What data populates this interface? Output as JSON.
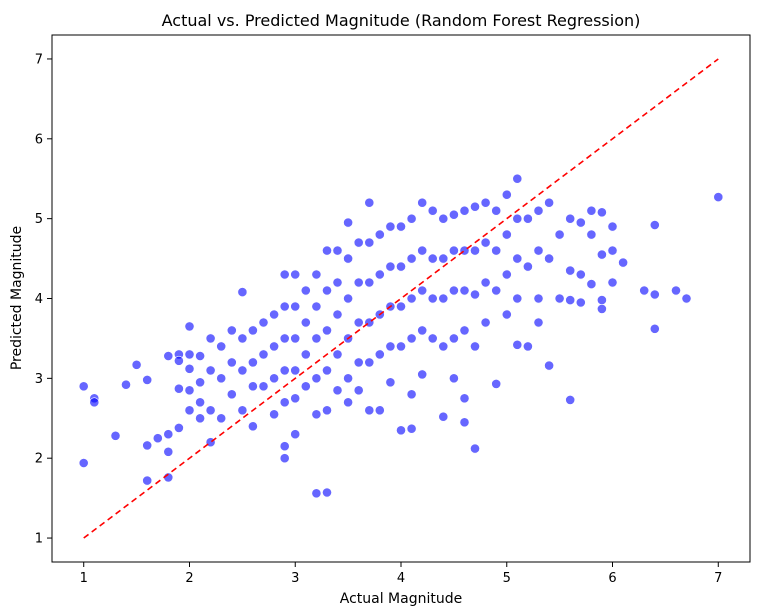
{
  "chart_data": {
    "type": "scatter",
    "title": "Actual vs. Predicted Magnitude (Random Forest Regression)",
    "xlabel": "Actual Magnitude",
    "ylabel": "Predicted Magnitude",
    "xlim": [
      0.7,
      7.3
    ],
    "ylim": [
      0.7,
      7.3
    ],
    "xticks": [
      "1",
      "2",
      "3",
      "4",
      "5",
      "6",
      "7"
    ],
    "yticks": [
      "1",
      "2",
      "3",
      "4",
      "5",
      "6",
      "7"
    ],
    "grid": false,
    "colors": {
      "points": "#0000ff",
      "reference_line": "#ff0000"
    },
    "reference_line": {
      "style": "dashed",
      "points": [
        [
          1,
          1
        ],
        [
          7,
          7
        ]
      ]
    },
    "series": [
      {
        "values": [
          [
            1.0,
            2.9
          ],
          [
            1.0,
            1.94
          ],
          [
            1.1,
            2.75
          ],
          [
            1.1,
            2.7
          ],
          [
            1.3,
            2.28
          ],
          [
            1.4,
            2.92
          ],
          [
            1.5,
            3.17
          ],
          [
            1.6,
            2.98
          ],
          [
            1.6,
            2.16
          ],
          [
            1.6,
            1.72
          ],
          [
            1.7,
            2.25
          ],
          [
            1.8,
            2.3
          ],
          [
            1.8,
            2.08
          ],
          [
            1.8,
            1.76
          ],
          [
            1.8,
            3.28
          ],
          [
            1.9,
            3.3
          ],
          [
            1.9,
            2.87
          ],
          [
            1.9,
            2.38
          ],
          [
            1.9,
            3.22
          ],
          [
            2.0,
            3.65
          ],
          [
            2.0,
            3.3
          ],
          [
            2.0,
            3.12
          ],
          [
            2.0,
            2.6
          ],
          [
            2.0,
            2.85
          ],
          [
            2.1,
            3.28
          ],
          [
            2.1,
            2.95
          ],
          [
            2.1,
            2.7
          ],
          [
            2.1,
            2.5
          ],
          [
            2.2,
            3.5
          ],
          [
            2.2,
            3.1
          ],
          [
            2.2,
            2.6
          ],
          [
            2.2,
            2.2
          ],
          [
            2.3,
            3.4
          ],
          [
            2.3,
            3.0
          ],
          [
            2.3,
            2.5
          ],
          [
            2.4,
            3.6
          ],
          [
            2.4,
            3.2
          ],
          [
            2.4,
            2.8
          ],
          [
            2.5,
            4.08
          ],
          [
            2.5,
            3.5
          ],
          [
            2.5,
            3.1
          ],
          [
            2.5,
            2.6
          ],
          [
            2.6,
            3.6
          ],
          [
            2.6,
            3.2
          ],
          [
            2.6,
            2.9
          ],
          [
            2.6,
            2.4
          ],
          [
            2.7,
            3.7
          ],
          [
            2.7,
            3.3
          ],
          [
            2.7,
            2.9
          ],
          [
            2.8,
            3.8
          ],
          [
            2.8,
            3.4
          ],
          [
            2.8,
            3.0
          ],
          [
            2.8,
            2.55
          ],
          [
            2.9,
            4.3
          ],
          [
            2.9,
            3.9
          ],
          [
            2.9,
            3.5
          ],
          [
            2.9,
            3.1
          ],
          [
            2.9,
            2.7
          ],
          [
            2.9,
            2.15
          ],
          [
            2.9,
            2.0
          ],
          [
            3.0,
            4.3
          ],
          [
            3.0,
            3.9
          ],
          [
            3.0,
            3.5
          ],
          [
            3.0,
            3.1
          ],
          [
            3.0,
            2.75
          ],
          [
            3.0,
            2.3
          ],
          [
            3.1,
            4.1
          ],
          [
            3.1,
            3.7
          ],
          [
            3.1,
            3.3
          ],
          [
            3.1,
            2.9
          ],
          [
            3.2,
            4.3
          ],
          [
            3.2,
            3.9
          ],
          [
            3.2,
            3.5
          ],
          [
            3.2,
            3.0
          ],
          [
            3.2,
            2.55
          ],
          [
            3.2,
            1.56
          ],
          [
            3.3,
            4.6
          ],
          [
            3.3,
            4.1
          ],
          [
            3.3,
            3.6
          ],
          [
            3.3,
            3.1
          ],
          [
            3.3,
            2.6
          ],
          [
            3.3,
            1.57
          ],
          [
            3.4,
            4.6
          ],
          [
            3.4,
            4.2
          ],
          [
            3.4,
            3.8
          ],
          [
            3.4,
            3.3
          ],
          [
            3.4,
            2.85
          ],
          [
            3.5,
            4.95
          ],
          [
            3.5,
            4.5
          ],
          [
            3.5,
            4.0
          ],
          [
            3.5,
            3.5
          ],
          [
            3.5,
            3.0
          ],
          [
            3.5,
            2.7
          ],
          [
            3.6,
            4.7
          ],
          [
            3.6,
            4.2
          ],
          [
            3.6,
            3.7
          ],
          [
            3.6,
            3.2
          ],
          [
            3.6,
            2.85
          ],
          [
            3.7,
            5.2
          ],
          [
            3.7,
            4.7
          ],
          [
            3.7,
            4.2
          ],
          [
            3.7,
            3.7
          ],
          [
            3.7,
            3.2
          ],
          [
            3.7,
            2.6
          ],
          [
            3.8,
            4.8
          ],
          [
            3.8,
            4.3
          ],
          [
            3.8,
            3.8
          ],
          [
            3.8,
            3.3
          ],
          [
            3.8,
            2.6
          ],
          [
            3.9,
            4.9
          ],
          [
            3.9,
            4.4
          ],
          [
            3.9,
            3.9
          ],
          [
            3.9,
            3.4
          ],
          [
            3.9,
            2.95
          ],
          [
            4.0,
            4.9
          ],
          [
            4.0,
            4.4
          ],
          [
            4.0,
            3.9
          ],
          [
            4.0,
            3.4
          ],
          [
            4.0,
            2.35
          ],
          [
            4.1,
            5.0
          ],
          [
            4.1,
            4.5
          ],
          [
            4.1,
            4.0
          ],
          [
            4.1,
            3.5
          ],
          [
            4.1,
            2.37
          ],
          [
            4.1,
            2.8
          ],
          [
            4.2,
            5.2
          ],
          [
            4.2,
            4.6
          ],
          [
            4.2,
            4.1
          ],
          [
            4.2,
            3.6
          ],
          [
            4.2,
            3.05
          ],
          [
            4.3,
            5.1
          ],
          [
            4.3,
            4.5
          ],
          [
            4.3,
            4.0
          ],
          [
            4.3,
            3.5
          ],
          [
            4.4,
            5.0
          ],
          [
            4.4,
            4.5
          ],
          [
            4.4,
            4.0
          ],
          [
            4.4,
            3.4
          ],
          [
            4.4,
            2.52
          ],
          [
            4.5,
            5.05
          ],
          [
            4.5,
            4.6
          ],
          [
            4.5,
            4.1
          ],
          [
            4.5,
            3.5
          ],
          [
            4.5,
            3.0
          ],
          [
            4.6,
            5.1
          ],
          [
            4.6,
            4.6
          ],
          [
            4.6,
            4.1
          ],
          [
            4.6,
            3.6
          ],
          [
            4.6,
            2.75
          ],
          [
            4.6,
            2.45
          ],
          [
            4.7,
            5.15
          ],
          [
            4.7,
            4.6
          ],
          [
            4.7,
            4.05
          ],
          [
            4.7,
            3.4
          ],
          [
            4.7,
            2.12
          ],
          [
            4.8,
            5.2
          ],
          [
            4.8,
            4.7
          ],
          [
            4.8,
            4.2
          ],
          [
            4.8,
            3.7
          ],
          [
            4.9,
            5.1
          ],
          [
            4.9,
            4.6
          ],
          [
            4.9,
            4.1
          ],
          [
            4.9,
            2.93
          ],
          [
            5.0,
            5.3
          ],
          [
            5.0,
            4.8
          ],
          [
            5.0,
            4.3
          ],
          [
            5.0,
            3.8
          ],
          [
            5.1,
            5.5
          ],
          [
            5.1,
            5.0
          ],
          [
            5.1,
            4.5
          ],
          [
            5.1,
            4.0
          ],
          [
            5.1,
            3.42
          ],
          [
            5.2,
            5.0
          ],
          [
            5.2,
            4.4
          ],
          [
            5.2,
            3.4
          ],
          [
            5.3,
            5.1
          ],
          [
            5.3,
            4.6
          ],
          [
            5.3,
            4.0
          ],
          [
            5.3,
            3.7
          ],
          [
            5.4,
            5.2
          ],
          [
            5.4,
            4.5
          ],
          [
            5.4,
            3.16
          ],
          [
            5.5,
            4.8
          ],
          [
            5.5,
            4.0
          ],
          [
            5.6,
            5.0
          ],
          [
            5.6,
            4.35
          ],
          [
            5.6,
            3.98
          ],
          [
            5.6,
            2.73
          ],
          [
            5.7,
            4.95
          ],
          [
            5.7,
            4.3
          ],
          [
            5.7,
            3.95
          ],
          [
            5.8,
            5.1
          ],
          [
            5.8,
            4.8
          ],
          [
            5.8,
            4.18
          ],
          [
            5.9,
            5.08
          ],
          [
            5.9,
            4.55
          ],
          [
            5.9,
            3.98
          ],
          [
            5.9,
            3.87
          ],
          [
            6.0,
            4.9
          ],
          [
            6.0,
            4.6
          ],
          [
            6.0,
            4.2
          ],
          [
            6.1,
            4.45
          ],
          [
            6.3,
            4.1
          ],
          [
            6.4,
            4.92
          ],
          [
            6.4,
            4.05
          ],
          [
            6.4,
            3.62
          ],
          [
            6.6,
            4.1
          ],
          [
            6.7,
            4.0
          ],
          [
            7.0,
            5.27
          ]
        ]
      }
    ]
  }
}
